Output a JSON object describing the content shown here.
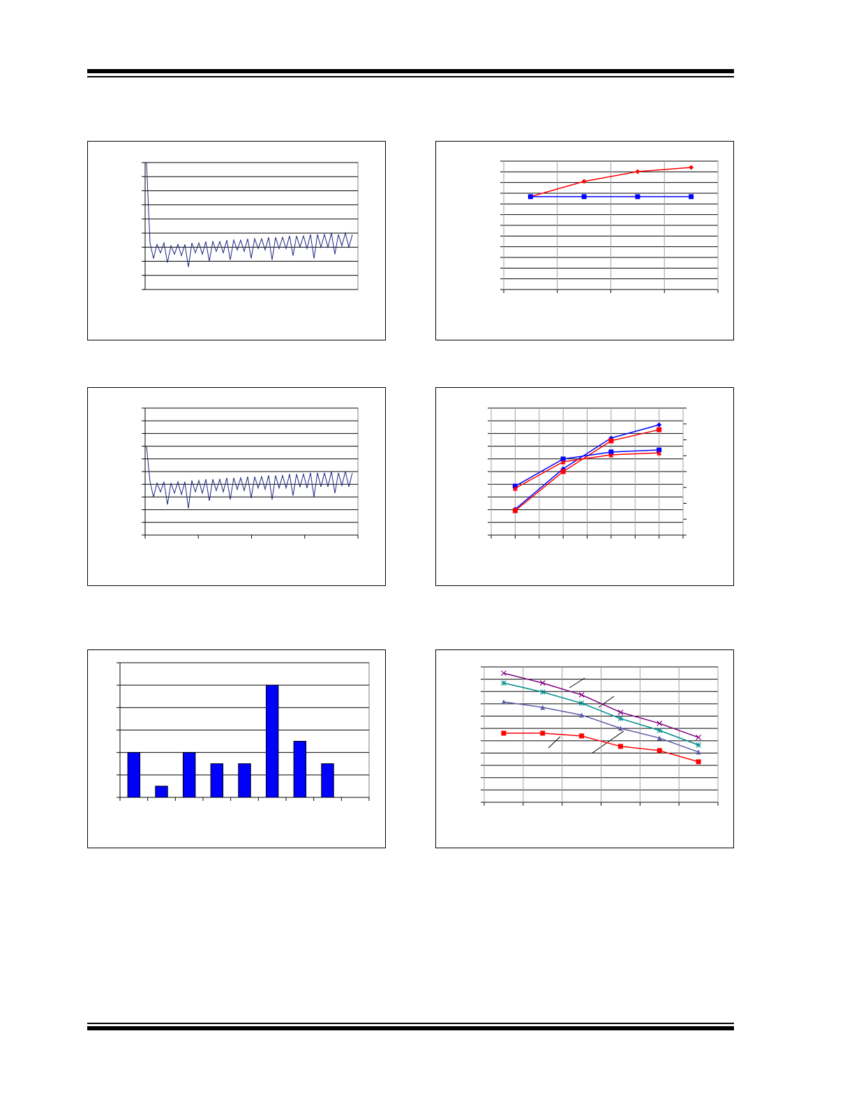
{
  "charts": [
    {
      "type": "line",
      "ylim": [
        0,
        9
      ],
      "yticks": [
        0,
        1,
        2,
        3,
        4,
        5,
        6,
        7,
        8,
        9
      ],
      "grid": true,
      "series": [
        {
          "color": "#1a237e",
          "values": [
            9,
            3.3,
            2.2,
            3.2,
            2.6,
            3.3,
            1.9,
            3.1,
            2.5,
            3.2,
            2.4,
            3.2,
            1.6,
            3.3,
            2.6,
            3.3,
            2.5,
            3.4,
            2.0,
            3.4,
            2.7,
            3.4,
            2.6,
            3.5,
            2.1,
            3.5,
            2.8,
            3.5,
            2.7,
            3.6,
            2.2,
            3.6,
            2.9,
            3.6,
            2.8,
            3.7,
            2.1,
            3.7,
            2.9,
            3.7,
            2.9,
            3.8,
            2.4,
            3.8,
            3.0,
            3.8,
            2.9,
            3.9,
            2.2,
            3.9,
            3.0,
            3.9,
            3.0,
            4.0,
            2.5,
            3.9,
            3.1,
            4.0,
            3.0,
            3.9
          ]
        }
      ]
    },
    {
      "type": "line",
      "ylim": [
        0,
        12
      ],
      "yticks": [
        0,
        1,
        2,
        3,
        4,
        5,
        6,
        7,
        8,
        9,
        10,
        11,
        12
      ],
      "xlim": [
        0,
        4
      ],
      "xticks": [
        0,
        1,
        2,
        3,
        4
      ],
      "grid": true,
      "xgrid": true,
      "x": [
        0.5,
        1.5,
        2.5,
        3.5
      ],
      "series": [
        {
          "color": "#ff0000",
          "marker": "diamond",
          "values": [
            8.68,
            10.11,
            11.02,
            11.41
          ]
        },
        {
          "color": "#0000ff",
          "marker": "square",
          "values": [
            8.68,
            8.68,
            8.68,
            8.68
          ]
        }
      ]
    },
    {
      "type": "line",
      "ylim": [
        0,
        10
      ],
      "yticks": [
        0,
        1,
        2,
        3,
        4,
        5,
        6,
        7,
        8,
        9,
        10
      ],
      "xlim": [
        0,
        4
      ],
      "xticks": [
        0,
        1,
        2,
        3,
        4
      ],
      "grid": true,
      "series": [
        {
          "color": "#1a237e",
          "values": [
            7,
            4.2,
            3.0,
            4.1,
            3.4,
            4.2,
            2.4,
            4.1,
            3.3,
            4.2,
            3.2,
            4.2,
            2.1,
            4.3,
            3.4,
            4.3,
            3.3,
            4.4,
            2.7,
            4.4,
            3.5,
            4.4,
            3.4,
            4.5,
            2.8,
            4.5,
            3.6,
            4.5,
            3.5,
            4.6,
            2.9,
            4.6,
            3.7,
            4.6,
            3.6,
            4.7,
            2.8,
            4.7,
            3.7,
            4.7,
            3.7,
            4.8,
            3.1,
            4.8,
            3.8,
            4.8,
            3.7,
            4.9,
            3.0,
            4.9,
            3.8,
            4.9,
            3.8,
            5.0,
            3.3,
            4.9,
            3.9,
            5.0,
            3.8,
            4.9
          ]
        }
      ]
    },
    {
      "type": "line",
      "ylim": [
        0,
        10
      ],
      "yticks": [
        0,
        1,
        2,
        3,
        4,
        5,
        6,
        7,
        8,
        9,
        10
      ],
      "y2lim": [
        0,
        8
      ],
      "y2ticks": [
        0,
        1,
        2,
        3,
        4,
        5,
        6,
        7,
        8
      ],
      "xlim": [
        0,
        8
      ],
      "xticks": [
        0,
        1,
        2,
        3,
        4,
        5,
        6,
        7,
        8
      ],
      "grid": true,
      "xgrid": true,
      "x": [
        1,
        3,
        5,
        7
      ],
      "series": [
        {
          "color": "#0000ff",
          "marker": "diamond",
          "values": [
            2.03,
            5.22,
            7.64,
            8.68
          ]
        },
        {
          "color": "#ff0000",
          "marker": "square",
          "values": [
            1.92,
            5.0,
            7.42,
            8.3
          ]
        },
        {
          "color": "#0000ff",
          "marker": "square",
          "values": [
            3.85,
            5.99,
            6.54,
            6.7
          ]
        },
        {
          "color": "#ff0000",
          "marker": "triangle",
          "values": [
            3.68,
            5.77,
            6.32,
            6.48
          ]
        }
      ]
    },
    {
      "type": "histogram",
      "ylim": [
        0,
        6
      ],
      "yticks": [
        0,
        1,
        2,
        3,
        4,
        5,
        6
      ],
      "grid": true,
      "color": "#0000ff",
      "bins": [
        0,
        1,
        2,
        3,
        4,
        5,
        6,
        7,
        8,
        9
      ],
      "values": [
        2,
        0.5,
        2,
        1.5,
        1.5,
        5,
        2.5,
        1.5,
        0
      ]
    },
    {
      "type": "line",
      "ylim": [
        0,
        11
      ],
      "yticks": [
        0,
        1,
        2,
        3,
        4,
        5,
        6,
        7,
        8,
        9,
        10,
        11
      ],
      "xlim": [
        0,
        6
      ],
      "xticks": [
        0,
        1,
        2,
        3,
        4,
        5,
        6
      ],
      "grid": true,
      "xgrid": true,
      "x": [
        0.5,
        1.5,
        2.5,
        3.5,
        4.5,
        5.5
      ],
      "series": [
        {
          "color": "#800080",
          "marker": "cross",
          "values": [
            10.49,
            9.69,
            8.73,
            7.31,
            6.41,
            5.27
          ]
        },
        {
          "color": "#008b8b",
          "marker": "star",
          "values": [
            9.69,
            8.96,
            8.05,
            6.8,
            5.84,
            4.65
          ]
        },
        {
          "color": "#5c5ca8",
          "marker": "triangle",
          "values": [
            8.16,
            7.71,
            7.09,
            6.01,
            5.22,
            4.08
          ]
        },
        {
          "color": "#ff0000",
          "marker": "square",
          "values": [
            5.61,
            5.61,
            5.39,
            4.54,
            4.2,
            3.29
          ]
        }
      ]
    }
  ]
}
